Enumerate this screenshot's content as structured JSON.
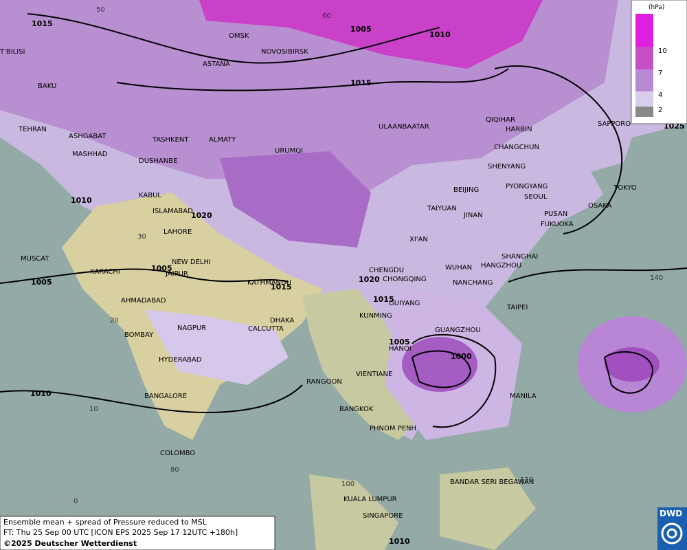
{
  "cities": [
    "OMSK",
    "NOVOSIBIRSK",
    "ASTANA",
    "BAKU",
    "T'BILISI",
    "TEHRAN",
    "ASHGABAT",
    "MASHHAD",
    "TASHKENT",
    "ALMATY",
    "DUSHANBE",
    "URUMQI",
    "KABUL",
    "ISLAMABAD",
    "LAHORE",
    "NEW DELHI",
    "JAIPUR",
    "KARACHI",
    "MUSCAT",
    "AHMADABAD",
    "KATHMANDU",
    "DHAKA",
    "CALCUTTA",
    "NAGPUR",
    "BOMBAY",
    "HYDERABAD",
    "BANGALORE",
    "COLOMBO",
    "RANGOON",
    "VIENTIANE",
    "BANGKOK",
    "PHNOM PENH",
    "HANOI",
    "KUNMING",
    "GUIYANG",
    "CHONGQING",
    "CHENGDU",
    "XI'AN",
    "WUHAN",
    "NANCHANG",
    "HANGZHOU",
    "SHANGHAI",
    "TAIPEI",
    "GUANGZHOU",
    "MANILA",
    "BANDAR SERI BEGAWAN",
    "KUALA LUMPUR",
    "SINGAPORE",
    "ULAANBAATAR",
    "BEIJING",
    "TAIYUAN",
    "JINAN",
    "SHENYANG",
    "CHANGCHUN",
    "HARBIN",
    "QIQIHAR",
    "PYONGYANG",
    "SEOUL",
    "PUSAN",
    "FUKUOKA",
    "OSAKA",
    "TOKYO",
    "SAPPORO"
  ],
  "isobar_labels": [
    1015,
    1005,
    1010,
    1015,
    1010,
    1020,
    1005,
    1005,
    1020,
    1015,
    1015,
    1005,
    1000,
    1010,
    1010,
    1025
  ],
  "graticule_labels": [
    50,
    60,
    30,
    20,
    10,
    80,
    0,
    100,
    120,
    140
  ],
  "legend": {
    "unit": "(hPa)",
    "levels": [
      10,
      7,
      4,
      2
    ]
  },
  "caption": {
    "line1": "Ensemble mean + spread of Pressure reduced to MSL",
    "line2": "FT: Thu 25 Sep 00 UTC [ICON EPS 2025 Sep 17 12UTC +180h]",
    "line3": "©2025 Deutscher Wetterdienst"
  },
  "logo": "DWD"
}
